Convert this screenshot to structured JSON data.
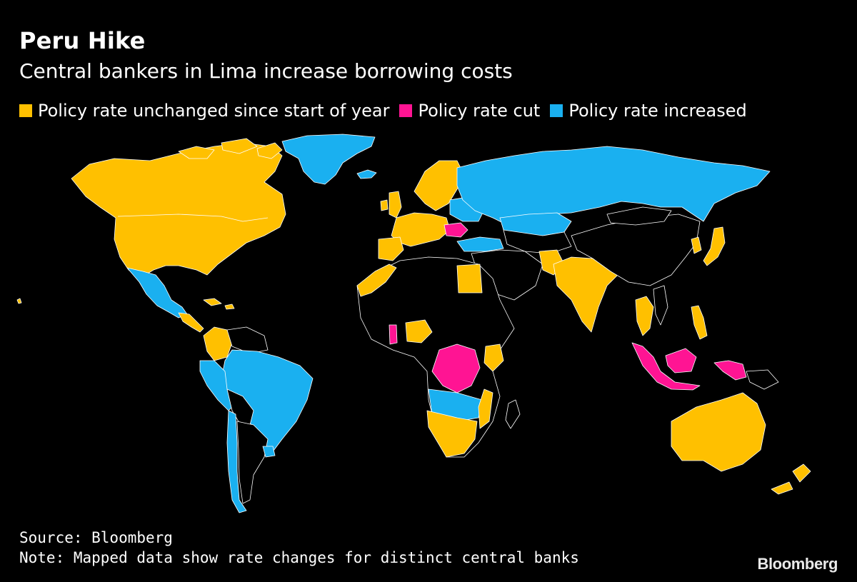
{
  "header": {
    "title": "Peru Hike",
    "subtitle": "Central bankers in Lima increase borrowing costs"
  },
  "legend": [
    {
      "label": "Policy rate unchanged since start of year",
      "color": "#ffc000"
    },
    {
      "label": "Policy rate cut",
      "color": "#ff1493"
    },
    {
      "label": "Policy rate increased",
      "color": "#1ab0f0"
    }
  ],
  "colors": {
    "background": "#000000",
    "unchanged": "#ffc000",
    "cut": "#ff1493",
    "increased": "#1ab0f0",
    "no_data": "#000000",
    "border": "#ffffff"
  },
  "footer": {
    "source": "Source: Bloomberg",
    "note": "Note: Mapped data show rate changes for distinct central banks",
    "brand": "Bloomberg"
  }
}
